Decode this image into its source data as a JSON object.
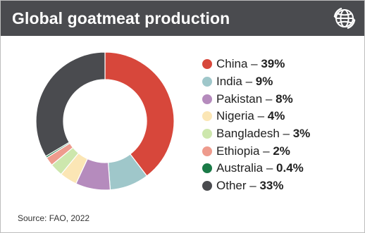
{
  "header": {
    "title": "Global goatmeat production",
    "icon": "globe-refresh-icon"
  },
  "chart_data": {
    "type": "pie",
    "donut": true,
    "unit": "%",
    "series": [
      {
        "name": "China",
        "value": 39,
        "label": "39%",
        "color": "#d7473b"
      },
      {
        "name": "India",
        "value": 9,
        "label": "9%",
        "color": "#9fc7ca"
      },
      {
        "name": "Pakistan",
        "value": 8,
        "label": "8%",
        "color": "#b58bbd"
      },
      {
        "name": "Nigeria",
        "value": 4,
        "label": "4%",
        "color": "#fbe6b5"
      },
      {
        "name": "Bangladesh",
        "value": 3,
        "label": "3%",
        "color": "#cde7ad"
      },
      {
        "name": "Ethiopia",
        "value": 2,
        "label": "2%",
        "color": "#ee9b8d"
      },
      {
        "name": "Australia",
        "value": 0.4,
        "label": "0.4%",
        "color": "#1a7a47"
      },
      {
        "name": "Other",
        "value": 33,
        "label": "33%",
        "color": "#4a4b4f"
      }
    ],
    "legend_position": "right"
  },
  "footer": {
    "source": "Source: FAO, 2022"
  }
}
